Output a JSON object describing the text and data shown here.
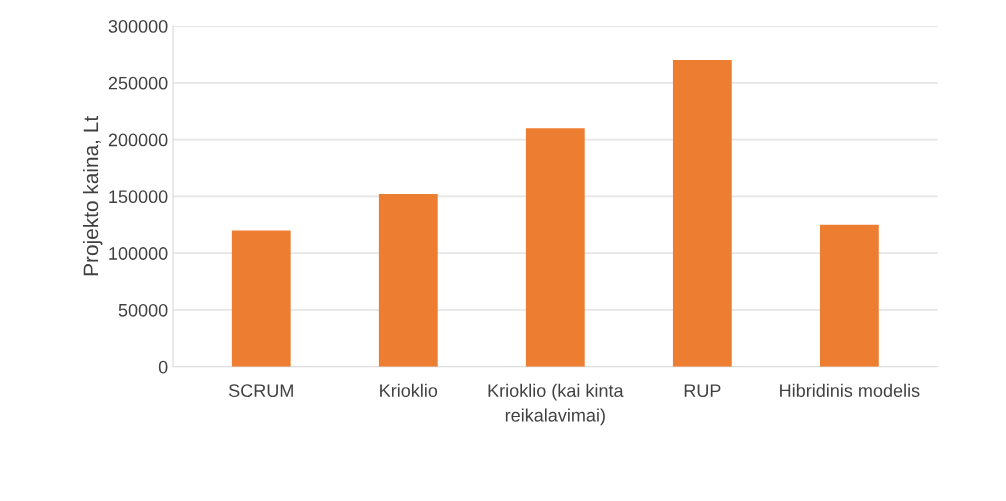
{
  "chart_data": {
    "type": "bar",
    "ylabel": "Projekto kaina, Lt",
    "categories": [
      "SCRUM",
      "Krioklio",
      "Krioklio (kai kinta reikalavimai)",
      "RUP",
      "Hibridinis modelis"
    ],
    "values": [
      120000,
      152000,
      210000,
      270000,
      125000
    ],
    "color": "#ed7d31",
    "ylim": [
      0,
      300000
    ],
    "yticks": [
      0,
      50000,
      100000,
      150000,
      200000,
      250000,
      300000
    ],
    "grid": "y"
  }
}
